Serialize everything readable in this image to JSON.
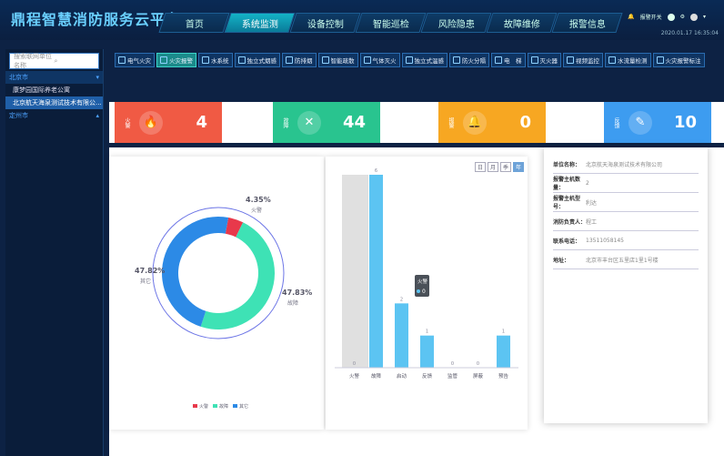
{
  "app": {
    "title": "鼎程智慧消防服务云平台"
  },
  "nav": [
    {
      "label": "首页"
    },
    {
      "label": "系统监测",
      "active": true
    },
    {
      "label": "设备控制"
    },
    {
      "label": "智能巡检"
    },
    {
      "label": "风险隐患"
    },
    {
      "label": "故障维修"
    },
    {
      "label": "报警信息"
    }
  ],
  "user": {
    "alarm_switch": "报警开关",
    "date": "2020.01.17",
    "time": "16:35:04"
  },
  "sidebar": {
    "search_placeholder": "搜索联网单位名称",
    "city1": "北京市",
    "sites": [
      "康梦园国际养老公寓",
      "北京航天海泉测试技术有限公..."
    ],
    "city2": "定州市"
  },
  "toolbar": [
    {
      "label": "电气火灾"
    },
    {
      "label": "火灾报警",
      "active": true
    },
    {
      "label": "水系统"
    },
    {
      "label": "独立式烟感"
    },
    {
      "label": "防排烟"
    },
    {
      "label": "智能疏散"
    },
    {
      "label": "气体灭火"
    },
    {
      "label": "独立式温感"
    },
    {
      "label": "防火分隔"
    },
    {
      "label": "电　梯"
    },
    {
      "label": "灭火器"
    },
    {
      "label": "视频监控"
    },
    {
      "label": "水流量检测"
    },
    {
      "label": "火灾报警标注"
    }
  ],
  "cards": [
    {
      "label": "火警",
      "value": "4",
      "color": "#f05a44",
      "icon": "fire-icon"
    },
    {
      "label": "故障",
      "value": "44",
      "color": "#29c48f",
      "icon": "tools-icon"
    },
    {
      "label": "报警",
      "value": "0",
      "color": "#f7a722",
      "icon": "bell-icon"
    },
    {
      "label": "反馈",
      "value": "10",
      "color": "#3d9cf0",
      "icon": "feedback-icon"
    }
  ],
  "period": [
    "日",
    "月",
    "季",
    "年"
  ],
  "chart_data": [
    {
      "type": "pie",
      "labels": [
        "火警",
        "故障",
        "其它"
      ],
      "values": [
        4.35,
        47.83,
        47.82
      ],
      "pct_labels": [
        "4.35%",
        "47.83%",
        "47.82%"
      ],
      "colors": [
        "#e8394b",
        "#3ee2b5",
        "#2c8ae6"
      ]
    },
    {
      "type": "bar",
      "categories": [
        "火警",
        "故障",
        "启动",
        "反馈",
        "监管",
        "屏蔽",
        "预告"
      ],
      "values": [
        0,
        6,
        2,
        1,
        0,
        0,
        1
      ],
      "labels": [
        "0",
        "6",
        "2",
        "1",
        "0",
        "0",
        "1"
      ],
      "tooltip": {
        "name": "火警",
        "value": "0"
      }
    }
  ],
  "info": [
    {
      "key": "单位名称：",
      "val": "北京航天海泉测试技术有限公司"
    },
    {
      "key": "报警主机数量：",
      "val": "2"
    },
    {
      "key": "报警主机型号：",
      "val": "利达"
    },
    {
      "key": "消防负责人：",
      "val": "程工"
    },
    {
      "key": "联系电话：",
      "val": "13511058145"
    },
    {
      "key": "地址：",
      "val": "北京市丰台区五里店1里1号楼"
    }
  ]
}
